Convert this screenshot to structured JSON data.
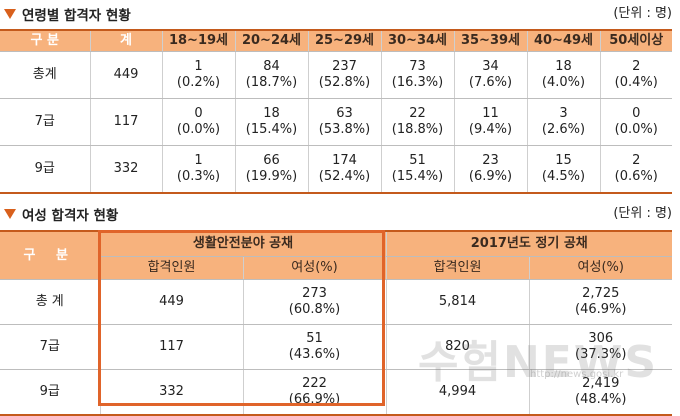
{
  "section1": {
    "title": "연령별 합격자 현황",
    "unit": "(단위 : 명)",
    "headers": [
      "구 분",
      "계",
      "18~19세",
      "20~24세",
      "25~29세",
      "30~34세",
      "35~39세",
      "40~49세",
      "50세이상"
    ],
    "rows": [
      {
        "label": "총계",
        "total": "449",
        "cells": [
          [
            "1",
            "(0.2%)"
          ],
          [
            "84",
            "(18.7%)"
          ],
          [
            "237",
            "(52.8%)"
          ],
          [
            "73",
            "(16.3%)"
          ],
          [
            "34",
            "(7.6%)"
          ],
          [
            "18",
            "(4.0%)"
          ],
          [
            "2",
            "(0.4%)"
          ]
        ]
      },
      {
        "label": "7급",
        "total": "117",
        "cells": [
          [
            "0",
            "(0.0%)"
          ],
          [
            "18",
            "(15.4%)"
          ],
          [
            "63",
            "(53.8%)"
          ],
          [
            "22",
            "(18.8%)"
          ],
          [
            "11",
            "(9.4%)"
          ],
          [
            "3",
            "(2.6%)"
          ],
          [
            "0",
            "(0.0%)"
          ]
        ]
      },
      {
        "label": "9급",
        "total": "332",
        "cells": [
          [
            "1",
            "(0.3%)"
          ],
          [
            "66",
            "(19.9%)"
          ],
          [
            "174",
            "(52.4%)"
          ],
          [
            "51",
            "(15.4%)"
          ],
          [
            "23",
            "(6.9%)"
          ],
          [
            "15",
            "(4.5%)"
          ],
          [
            "2",
            "(0.6%)"
          ]
        ]
      }
    ]
  },
  "section2": {
    "title": "여성 합격자 현황",
    "unit": "(단위 : 명)",
    "gubun": "구 분",
    "group1": "생활안전분야 공채",
    "group2": "2017년도 정기 공채",
    "sub": [
      "합격인원",
      "여성(%)",
      "합격인원",
      "여성(%)"
    ],
    "rows": [
      {
        "label": "총 계",
        "g1_total": "449",
        "g1_female": "273",
        "g1_pct": "(60.8%)",
        "g2_total": "5,814",
        "g2_female": "2,725",
        "g2_pct": "(46.9%)"
      },
      {
        "label": "7급",
        "g1_total": "117",
        "g1_female": "51",
        "g1_pct": "(43.6%)",
        "g2_total": "820",
        "g2_female": "306",
        "g2_pct": "(37.3%)"
      },
      {
        "label": "9급",
        "g1_total": "332",
        "g1_female": "222",
        "g1_pct": "(66.9%)",
        "g2_total": "4,994",
        "g2_female": "2,419",
        "g2_pct": "(48.4%)"
      }
    ]
  },
  "watermark": {
    "text": "수험NEWS",
    "url": "http://news.gosi.kr"
  },
  "colors": {
    "accent": "#d8601c",
    "header_bg": "#f7b27d",
    "highlight": "#e0642a"
  }
}
